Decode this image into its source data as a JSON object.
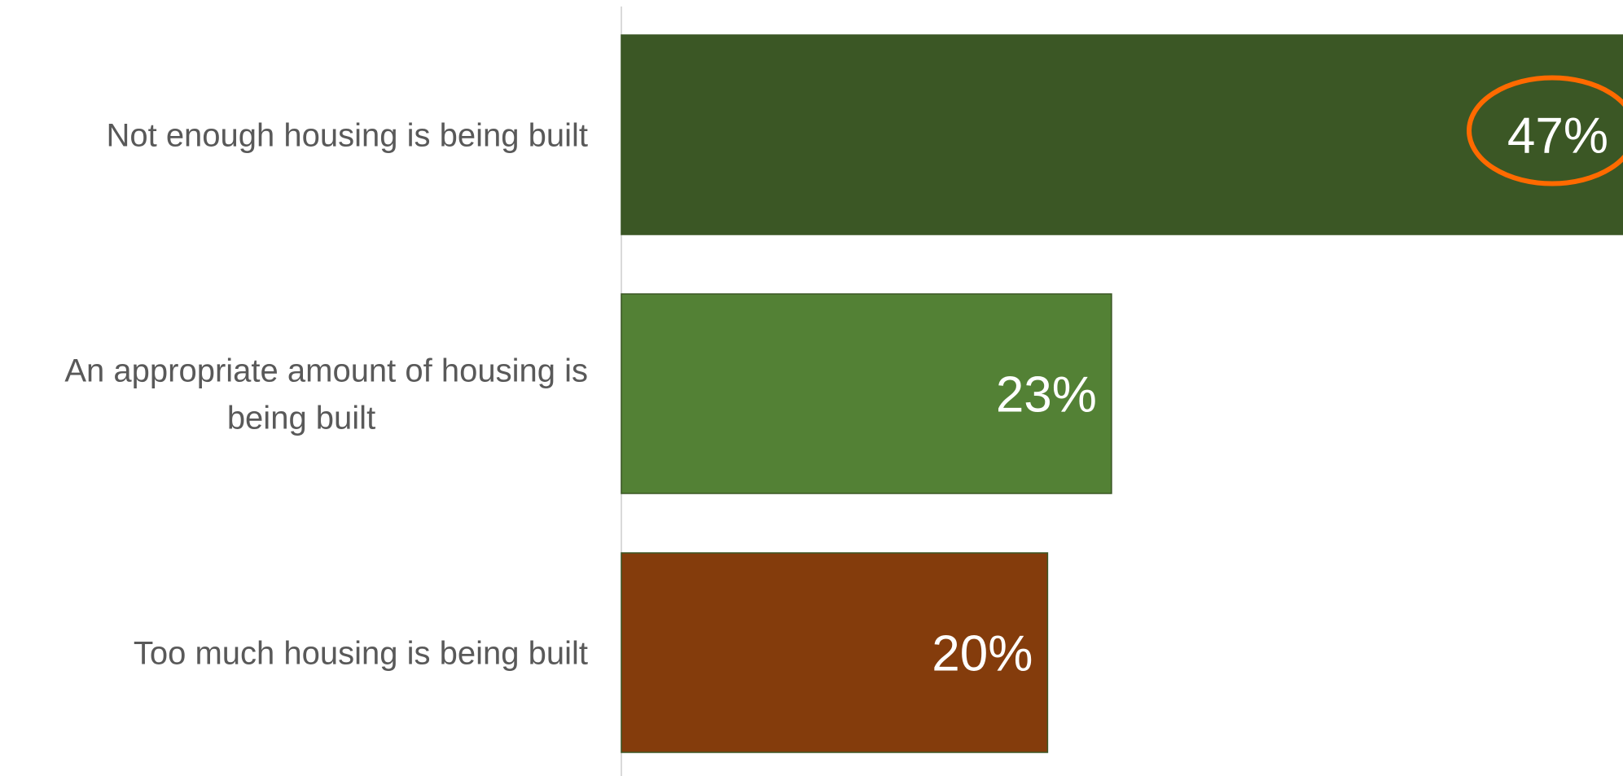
{
  "chart_data": {
    "type": "bar",
    "orientation": "horizontal",
    "categories": [
      "Not enough housing is being built",
      "An appropriate amount of housing is being built",
      "Too much housing is being built"
    ],
    "values": [
      47,
      23,
      20
    ],
    "value_labels": [
      "47%",
      "23%",
      "20%"
    ],
    "colors": [
      "#3B5725",
      "#538135",
      "#843C0C"
    ],
    "highlight": {
      "index": 0,
      "shape": "ellipse",
      "color": "#FF6A00"
    },
    "xlim": [
      0,
      47
    ],
    "grid": false,
    "legend": "none",
    "title": "",
    "xlabel": "",
    "ylabel": ""
  }
}
